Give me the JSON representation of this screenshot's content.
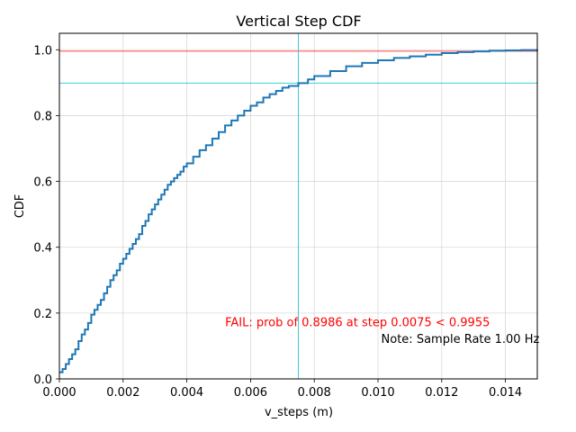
{
  "chart_data": {
    "type": "line",
    "title": "Vertical Step CDF",
    "xlabel": "v_steps (m)",
    "ylabel": "CDF",
    "xlim": [
      0,
      0.015
    ],
    "ylim": [
      0,
      1.05
    ],
    "grid": true,
    "x_ticks": [
      0,
      0.002,
      0.004,
      0.006,
      0.008,
      0.01,
      0.012,
      0.014
    ],
    "x_tick_labels": [
      "0.000",
      "0.002",
      "0.004",
      "0.006",
      "0.008",
      "0.010",
      "0.012",
      "0.014"
    ],
    "y_ticks": [
      0,
      0.2,
      0.4,
      0.6,
      0.8,
      1.0
    ],
    "y_tick_labels": [
      "0.0",
      "0.2",
      "0.4",
      "0.6",
      "0.8",
      "1.0"
    ],
    "series": [
      {
        "name": "CDF",
        "color": "#1f77b4",
        "x": [
          0,
          0.0001,
          0.0002,
          0.0003,
          0.0004,
          0.0005,
          0.0006,
          0.0007,
          0.0008,
          0.0009,
          0.001,
          0.0011,
          0.0012,
          0.0013,
          0.0014,
          0.0015,
          0.0016,
          0.0017,
          0.0018,
          0.0019,
          0.002,
          0.0021,
          0.0022,
          0.0023,
          0.0024,
          0.0025,
          0.0026,
          0.0027,
          0.0028,
          0.0029,
          0.003,
          0.0031,
          0.0032,
          0.0033,
          0.0034,
          0.0035,
          0.0036,
          0.0037,
          0.0038,
          0.0039,
          0.004,
          0.0042,
          0.0044,
          0.0046,
          0.0048,
          0.005,
          0.0052,
          0.0054,
          0.0056,
          0.0058,
          0.006,
          0.0062,
          0.0064,
          0.0066,
          0.0068,
          0.007,
          0.0072,
          0.0075,
          0.0078,
          0.008,
          0.0085,
          0.009,
          0.0095,
          0.01,
          0.0105,
          0.011,
          0.0115,
          0.012,
          0.0125,
          0.013,
          0.0135,
          0.014,
          0.0145,
          0.015
        ],
        "y": [
          0.02,
          0.03,
          0.045,
          0.06,
          0.075,
          0.09,
          0.115,
          0.135,
          0.15,
          0.17,
          0.195,
          0.21,
          0.225,
          0.24,
          0.26,
          0.28,
          0.3,
          0.315,
          0.33,
          0.35,
          0.365,
          0.38,
          0.395,
          0.41,
          0.425,
          0.44,
          0.465,
          0.48,
          0.5,
          0.515,
          0.53,
          0.545,
          0.56,
          0.575,
          0.59,
          0.6,
          0.61,
          0.62,
          0.63,
          0.645,
          0.655,
          0.675,
          0.695,
          0.71,
          0.73,
          0.75,
          0.77,
          0.785,
          0.8,
          0.815,
          0.83,
          0.84,
          0.855,
          0.865,
          0.875,
          0.885,
          0.89,
          0.8986,
          0.91,
          0.92,
          0.935,
          0.95,
          0.96,
          0.968,
          0.975,
          0.98,
          0.985,
          0.99,
          0.993,
          0.995,
          0.997,
          0.998,
          0.999,
          1.0
        ]
      }
    ],
    "reference_lines": {
      "red_horizontal": {
        "y": 0.9955,
        "color": "#ff0000"
      },
      "cyan_horizontal": {
        "y": 0.8986,
        "color": "#17becf"
      },
      "cyan_vertical": {
        "x": 0.0075,
        "color": "#17becf"
      }
    },
    "annotations": [
      {
        "text": "FAIL: prob of 0.8986 at step 0.0075 < 0.9955",
        "color": "#ff0000",
        "x": 0.0052,
        "y": 0.16
      },
      {
        "text": "Note: Sample Rate 1.00 Hz",
        "color": "#000000",
        "x": 0.0101,
        "y": 0.11
      }
    ]
  }
}
